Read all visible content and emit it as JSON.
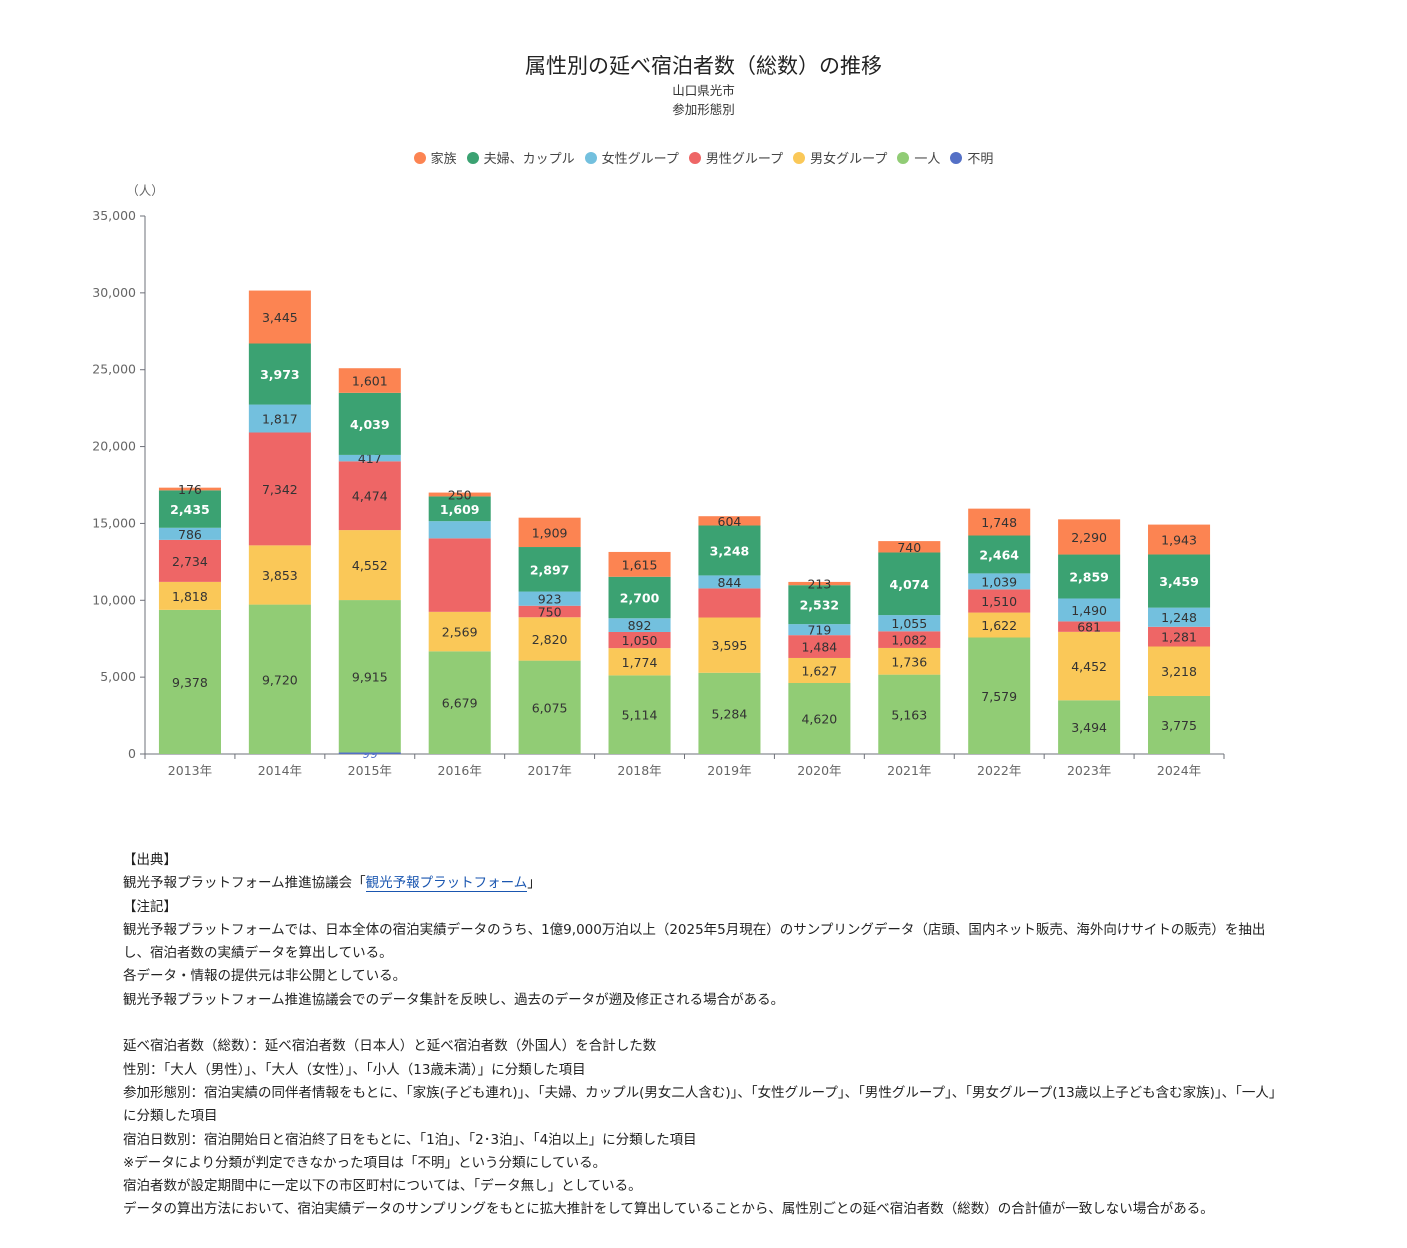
{
  "chart_data": {
    "type": "bar",
    "stacked": true,
    "title": "属性別の延べ宿泊者数（総数）の推移",
    "subtitles": [
      "山口県光市",
      "参加形態別"
    ],
    "y_unit": "（人）",
    "ylim": [
      0,
      35000
    ],
    "y_ticks": [
      "0",
      "5,000",
      "10,000",
      "15,000",
      "20,000",
      "25,000",
      "30,000",
      "35,000"
    ],
    "categories": [
      "2013年",
      "2014年",
      "2015年",
      "2016年",
      "2017年",
      "2018年",
      "2019年",
      "2020年",
      "2021年",
      "2022年",
      "2023年",
      "2024年"
    ],
    "legend_position": "top-center",
    "series": [
      {
        "name": "不明",
        "color": "#5470c6",
        "values": [
          0,
          0,
          99,
          0,
          0,
          0,
          0,
          0,
          0,
          0,
          0,
          0
        ]
      },
      {
        "name": "一人",
        "color": "#91cc75",
        "values": [
          9378,
          9720,
          9915,
          6679,
          6075,
          5114,
          5284,
          4620,
          5163,
          7579,
          3494,
          3775
        ]
      },
      {
        "name": "男女グループ",
        "color": "#fac858",
        "values": [
          1818,
          3853,
          4552,
          2569,
          2820,
          1774,
          3595,
          1627,
          1736,
          1622,
          4452,
          3218
        ]
      },
      {
        "name": "男性グループ",
        "color": "#ee6666",
        "values": [
          2734,
          7342,
          4474,
          4781,
          750,
          1050,
          1895,
          1484,
          1082,
          1510,
          681,
          1281
        ]
      },
      {
        "name": "女性グループ",
        "color": "#73c0de",
        "values": [
          786,
          1817,
          417,
          1119,
          923,
          892,
          844,
          719,
          1055,
          1039,
          1490,
          1248
        ]
      },
      {
        "name": "夫婦、カップル",
        "color": "#3ba272",
        "values": [
          2435,
          3973,
          4039,
          1609,
          2897,
          2700,
          3248,
          2532,
          4074,
          2464,
          2859,
          3459
        ]
      },
      {
        "name": "家族",
        "color": "#fc8452",
        "values": [
          176,
          3445,
          1601,
          250,
          1909,
          1615,
          604,
          213,
          740,
          1748,
          2290,
          1943
        ]
      }
    ],
    "legend_order": [
      "家族",
      "夫婦、カップル",
      "女性グループ",
      "男性グループ",
      "男女グループ",
      "一人",
      "不明"
    ],
    "hidden_labels": [
      [
        3,
        3
      ],
      [
        4,
        3
      ],
      [
        3,
        6
      ]
    ]
  },
  "notes": {
    "source_heading": "【出典】",
    "source_prefix": "観光予報プラットフォーム推進協議会「",
    "source_link": "観光予報プラットフォーム",
    "source_suffix": "」",
    "notes_heading": "【注記】",
    "lines1": [
      "観光予報プラットフォームでは、日本全体の宿泊実績データのうち、1億9,000万泊以上（2025年5月現在）のサンプリングデータ（店頭、国内ネット販売、海外向けサイトの販売）を抽出し、宿泊者数の実績データを算出している。",
      "各データ・情報の提供元は非公開としている。",
      "観光予報プラットフォーム推進協議会でのデータ集計を反映し、過去のデータが遡及修正される場合がある。"
    ],
    "lines2": [
      "延べ宿泊者数（総数）：延べ宿泊者数（日本人）と延べ宿泊者数（外国人）を合計した数",
      "性別：「大人（男性）」、「大人（女性）」、「小人（13歳未満）」に分類した項目",
      "参加形態別：宿泊実績の同伴者情報をもとに、「家族(子ども連れ)」、「夫婦、カップル(男女二人含む)」、「女性グループ」、「男性グループ」、「男女グループ(13歳以上子ども含む家族)」、「一人」に分類した項目",
      "宿泊日数別：宿泊開始日と宿泊終了日をもとに、「1泊」、「2･3泊」、「4泊以上」に分類した項目",
      "※データにより分類が判定できなかった項目は「不明」という分類にしている。",
      "宿泊者数が設定期間中に一定以下の市区町村については、「データ無し」としている。",
      "データの算出方法において、宿泊実績データのサンプリングをもとに拡大推計をして算出していることから、属性別ごとの延べ宿泊者数（総数）の合計値が一致しない場合がある。"
    ]
  }
}
